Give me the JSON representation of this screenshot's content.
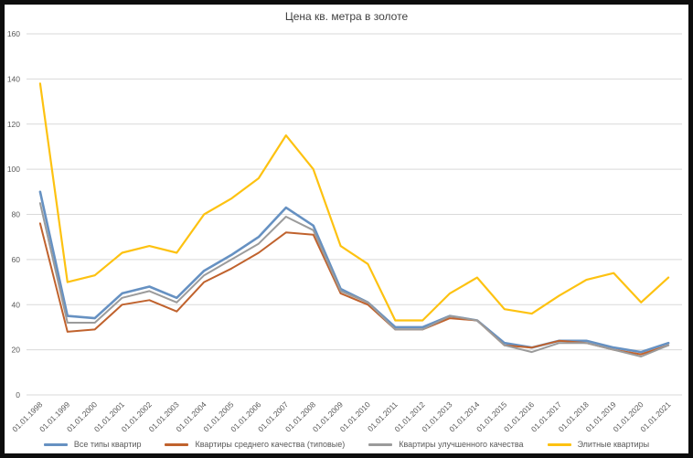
{
  "chart_data": {
    "type": "line",
    "title": "Цена кв. метра в золоте",
    "categories": [
      "01.01.1998",
      "01.01.1999",
      "01.01.2000",
      "01.01.2001",
      "01.01.2002",
      "01.01.2003",
      "01.01.2004",
      "01.01.2005",
      "01.01.2006",
      "01.01.2007",
      "01.01.2008",
      "01.01.2009",
      "01.01.2010",
      "01.01.2011",
      "01.01.2012",
      "01.01.2013",
      "01.01.2014",
      "01.01.2015",
      "01.01.2016",
      "01.01.2017",
      "01.01.2018",
      "01.01.2019",
      "01.01.2020",
      "01.01.2021"
    ],
    "series": [
      {
        "name": "Все типы квартир",
        "color": "#6691C2",
        "values": [
          90,
          35,
          34,
          45,
          48,
          43,
          55,
          62,
          70,
          83,
          75,
          47,
          41,
          30,
          30,
          35,
          33,
          23,
          21,
          24,
          24,
          21,
          19,
          23
        ]
      },
      {
        "name": "Квартиры среднего качества (типовые)",
        "color": "#C0622D",
        "values": [
          76,
          28,
          29,
          40,
          42,
          37,
          50,
          56,
          63,
          72,
          71,
          45,
          40,
          29,
          29,
          34,
          33,
          22,
          21,
          24,
          23,
          20,
          18,
          22
        ]
      },
      {
        "name": "Квартиры улучшенного качества",
        "color": "#9B9B9B",
        "values": [
          85,
          32,
          32,
          43,
          46,
          41,
          53,
          60,
          67,
          79,
          73,
          46,
          41,
          29,
          29,
          35,
          33,
          22,
          19,
          23,
          23,
          20,
          17,
          22
        ]
      },
      {
        "name": "Элитные квартиры",
        "color": "#FDC211",
        "values": [
          138,
          50,
          53,
          63,
          66,
          63,
          80,
          87,
          96,
          115,
          100,
          66,
          58,
          33,
          33,
          45,
          52,
          38,
          36,
          44,
          51,
          54,
          41,
          52
        ]
      }
    ],
    "ylim": [
      0,
      160
    ],
    "yticks": [
      0,
      20,
      40,
      60,
      80,
      100,
      120,
      140,
      160
    ],
    "ytick_step": 20,
    "grid": true,
    "legend_position": "bottom",
    "colors": {
      "gridline": "#d9d9d9",
      "axis_text": "#595959",
      "title_text": "#3f3f3f"
    }
  }
}
